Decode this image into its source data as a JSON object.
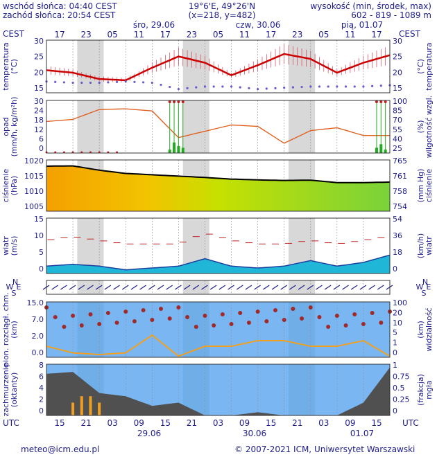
{
  "header": {
    "sunrise": "wschód słońca: 04:40 CEST",
    "sunset": "zachód słońca: 20:54 CEST",
    "coords": "19°6'E, 49°26'N",
    "grid": "(x=218, y=482)",
    "height_title": "wysokość (min, środek, max)",
    "height_values": "602 - 819 - 1089 m"
  },
  "days_top": [
    "śro, 29.06",
    "czw, 30.06",
    "pią, 01.07"
  ],
  "days_bottom": [
    "29.06",
    "30.06",
    "01.07"
  ],
  "tz_top": "CEST",
  "tz_bottom": "UTC",
  "hours_cest": [
    "17",
    "23",
    "05",
    "11",
    "17",
    "23",
    "05",
    "11",
    "17",
    "23",
    "05",
    "11",
    "17"
  ],
  "hours_utc": [
    "15",
    "21",
    "03",
    "09",
    "15",
    "21",
    "03",
    "09",
    "15",
    "21",
    "03",
    "09",
    "15"
  ],
  "panels": {
    "temperature": {
      "left": [
        "temperatura",
        "(°C)"
      ],
      "right": [
        "temperatura",
        "(°C)"
      ],
      "ticks": [
        "30",
        "25",
        "20",
        "15"
      ],
      "ticks_right": [
        "30",
        "25",
        "20",
        "15"
      ]
    },
    "precip": {
      "left": [
        "opad",
        "(mm/h, kg/m²h)"
      ],
      "right": [
        "wilgotność wzgl.",
        "(%)"
      ],
      "ticks": [
        "30",
        "24",
        "18",
        "12",
        "6",
        "0"
      ],
      "ticks_right": [
        "100",
        "85",
        "70",
        "55",
        "40",
        "25"
      ]
    },
    "pressure": {
      "left": [
        "ciśnienie",
        "(hPa)"
      ],
      "right": [
        "ciśnienie",
        "(mm Hg)"
      ],
      "ticks": [
        "1020",
        "1015",
        "1010",
        "1005"
      ],
      "ticks_right": [
        "765",
        "761",
        "758",
        "754"
      ]
    },
    "wind": {
      "left": [
        "wiatr",
        "(m/s)"
      ],
      "right": [
        "wiatr",
        "(km/h)"
      ],
      "ticks": [
        "15",
        "10",
        "5",
        "0"
      ],
      "ticks_right": [
        "54",
        "36",
        "18",
        "0"
      ]
    },
    "winddir": {
      "compass": "N",
      "w": "W",
      "e": "E",
      "s": "S"
    },
    "clouds": {
      "left": [
        "pion. rozciągł. chm.",
        "(km)"
      ],
      "right": [
        "widzialność",
        "(km)"
      ],
      "ticks": [
        "15.0",
        "7.0",
        "2.0",
        "0.0"
      ],
      "ticks_right": [
        "100",
        "20",
        "10",
        "5",
        "1",
        "0"
      ]
    },
    "cover": {
      "left": [
        "zachmurzenie",
        "(oktanty)"
      ],
      "right": [
        "mgła",
        "(frakcja)"
      ],
      "ticks": [
        "8",
        "6",
        "4",
        "2",
        "0"
      ],
      "ticks_right": [
        "1",
        "0.75",
        "0.5",
        "0.25",
        "0"
      ]
    }
  },
  "footer": {
    "email": "meteo@icm.edu.pl",
    "copyright": "© 2007-2021 ICM, Uniwersytet Warszawski"
  },
  "colors": {
    "text": "#1d1d8c",
    "temp": "#cc0000",
    "humidity": "#e06020",
    "precip": "#22aa22",
    "pressure_line": "#000000",
    "wind": "#1b6fe0",
    "sky": "#7ab7f2",
    "night": "#d8d8d8"
  },
  "chart_data": [
    {
      "type": "line",
      "title": "",
      "ylabel": "temperatura (°C)",
      "ylim": [
        12,
        33
      ],
      "x": [
        0,
        6,
        12,
        18,
        24,
        30,
        36,
        42,
        48,
        54,
        60,
        66,
        72,
        78
      ],
      "series": [
        {
          "values": [
            21,
            20,
            17.5,
            17,
            22,
            26.5,
            24,
            19,
            23,
            27.5,
            25.5,
            20,
            24,
            27
          ]
        },
        {
          "values": [
            16.5,
            16,
            16,
            16.5,
            16,
            13.5,
            14.5,
            14.5,
            13.5,
            14,
            14.5,
            14.5,
            14.5,
            15
          ]
        }
      ]
    },
    {
      "type": "line",
      "ylabel": "wilgotność wzgl. (%)",
      "ylim": [
        25,
        100
      ],
      "x": [
        0,
        6,
        12,
        18,
        24,
        30,
        36,
        42,
        48,
        54,
        60,
        66,
        72,
        78
      ],
      "series": [
        {
          "values": [
            70,
            73,
            87,
            88,
            85,
            47,
            56,
            65,
            63,
            39,
            57,
            61,
            50,
            50
          ]
        },
        {
          "values": [
            0,
            0,
            0,
            0,
            0,
            2.5,
            0,
            0,
            0,
            0,
            0,
            0,
            0,
            2.5
          ]
        }
      ]
    },
    {
      "type": "area",
      "ylabel": "ciśnienie (hPa)",
      "ylim": [
        1002,
        1021
      ],
      "x": [
        0,
        6,
        12,
        18,
        24,
        30,
        36,
        42,
        48,
        54,
        60,
        66,
        72,
        78
      ],
      "series": [
        {
          "values": [
            1018.7,
            1018.8,
            1017.2,
            1016,
            1015.5,
            1015,
            1014.5,
            1013.9,
            1013.6,
            1013.4,
            1013.5,
            1012.6,
            1012.6,
            1012.8
          ]
        }
      ]
    },
    {
      "type": "area",
      "ylabel": "wiatr (m/s)",
      "ylim": [
        0,
        15
      ],
      "x": [
        0,
        6,
        12,
        18,
        24,
        30,
        36,
        42,
        48,
        54,
        60,
        66,
        72,
        78
      ],
      "series": [
        {
          "values": [
            2,
            2.5,
            2,
            1,
            1.5,
            2,
            4,
            2,
            1.5,
            2,
            3.5,
            2,
            3,
            5
          ]
        },
        {
          "values": [
            9,
            10,
            9,
            8,
            8,
            8,
            11,
            9,
            8,
            8,
            9,
            8,
            9,
            10
          ]
        }
      ]
    },
    {
      "type": "line",
      "ylabel": "widzialność (km)",
      "ylim": [
        0,
        100
      ],
      "x": [
        0,
        6,
        12,
        18,
        24,
        30,
        36,
        42,
        48,
        54,
        60,
        66,
        72,
        78
      ],
      "series": [
        {
          "values": [
            20,
            8,
            5,
            8,
            40,
            2,
            20,
            20,
            30,
            30,
            20,
            20,
            30,
            2
          ]
        }
      ]
    },
    {
      "type": "area",
      "ylabel": "zachmurzenie (oktanty)",
      "ylim": [
        0,
        8
      ],
      "x": [
        0,
        6,
        12,
        18,
        24,
        30,
        36,
        42,
        48,
        54,
        60,
        66,
        72,
        78
      ],
      "series": [
        {
          "values": [
            6.5,
            6.8,
            3.5,
            3,
            1.5,
            2,
            0,
            0,
            0.5,
            0,
            0,
            0,
            2,
            7.5
          ]
        }
      ]
    }
  ]
}
